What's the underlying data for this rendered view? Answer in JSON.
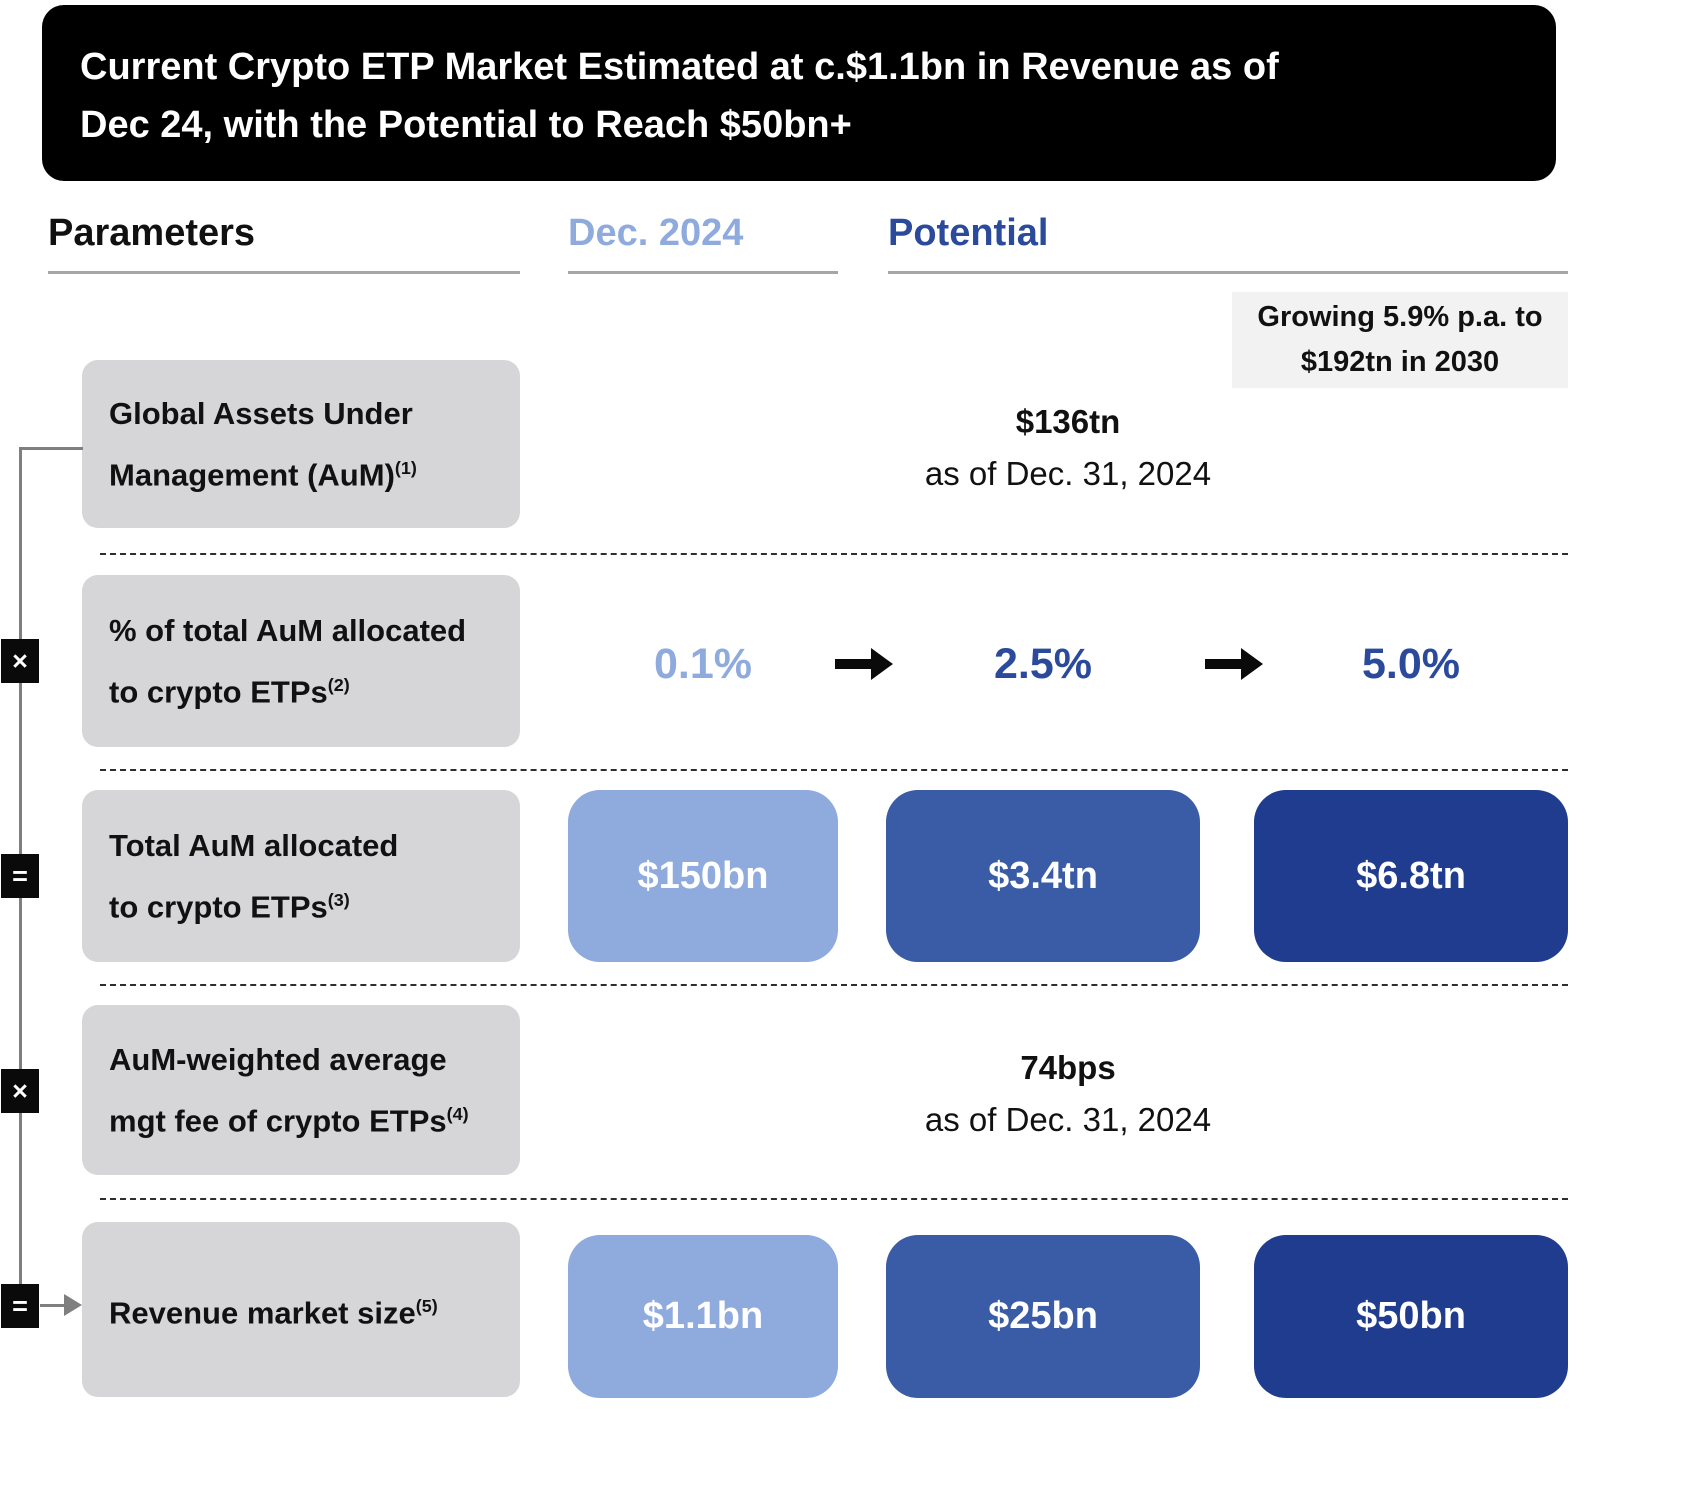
{
  "title_lines": [
    "Current Crypto ETP Market Estimated at c.$1.1bn in Revenue as of",
    "Dec 24, with the Potential to Reach $50bn+"
  ],
  "columns": {
    "parameters": "Parameters",
    "dec_2024": "Dec. 2024",
    "potential": "Potential"
  },
  "annotation": {
    "line1": "Growing 5.9% p.a. to",
    "line2": "$192tn in 2030"
  },
  "operators": [
    "×",
    "=",
    "×",
    "="
  ],
  "icons": {
    "arrow_right": "→"
  },
  "rows": [
    {
      "label_lines": [
        "Global Assets Under",
        "Management (AuM)"
      ],
      "footnote": "(1)",
      "value": "$136tn",
      "subvalue": "as of Dec. 31, 2024"
    },
    {
      "label_lines": [
        "% of total AuM allocated",
        "to crypto ETPs"
      ],
      "footnote": "(2)",
      "values": [
        "0.1%",
        "2.5%",
        "5.0%"
      ]
    },
    {
      "label_lines": [
        "Total AuM allocated",
        "to crypto ETPs"
      ],
      "footnote": "(3)",
      "values": [
        "$150bn",
        "$3.4tn",
        "$6.8tn"
      ]
    },
    {
      "label_lines": [
        "AuM-weighted average",
        "mgt fee of crypto ETPs"
      ],
      "footnote": "(4)",
      "value": "74bps",
      "subvalue": "as of Dec. 31, 2024"
    },
    {
      "label_lines": [
        "Revenue market size"
      ],
      "footnote": "(5)",
      "values": [
        "$1.1bn",
        "$25bn",
        "$50bn"
      ]
    }
  ],
  "colors": {
    "light_blue": "#8FAADC",
    "header_blue": "#2B4A9B",
    "mid_blue": "#3A5BA5",
    "dark_blue": "#203C8E",
    "label_gray": "#D6D6D8",
    "annotation_bg": "#F2F2F2"
  }
}
